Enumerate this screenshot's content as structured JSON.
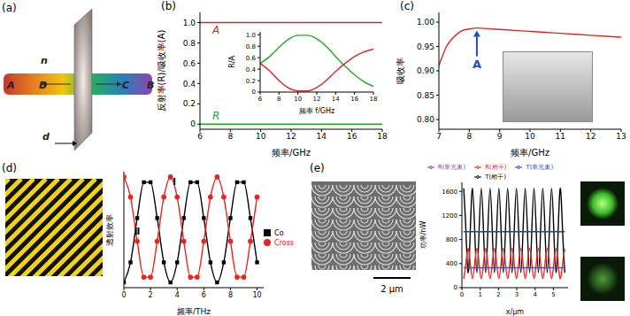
{
  "chart_data": [
    {
      "type": "line",
      "title": "(b)",
      "x_label": "频率/GHz",
      "y_label": "反射率(R)/吸收率(A)",
      "x": [
        6,
        18
      ],
      "series": [
        {
          "name": "A",
          "color": "#d62728",
          "values": [
            1,
            1
          ],
          "marker": "none"
        },
        {
          "name": "R",
          "color": "#2ca02c",
          "values": [
            0,
            0
          ],
          "marker": "none"
        }
      ],
      "xlim": [
        6,
        18
      ],
      "ylim": [
        -0.05,
        1.1
      ],
      "xticks": [
        6,
        8,
        10,
        12,
        14,
        16,
        18
      ],
      "yticks": [
        0,
        0.2,
        0.4,
        0.6,
        0.8,
        {
          "value": 1,
          "label": "1.0"
        }
      ]
    },
    {
      "type": "line",
      "x_label": "频率 f/GHz",
      "y_label": "R/A",
      "x": [
        6,
        7,
        8,
        9,
        10,
        11,
        12,
        13,
        14,
        15,
        16,
        17,
        18
      ],
      "series": [
        {
          "color": "#2ca02c",
          "values": [
            0.5,
            0.62,
            0.78,
            0.92,
            0.99,
            0.99,
            0.93,
            0.8,
            0.62,
            0.45,
            0.3,
            0.18,
            0.1
          ],
          "marker": "none"
        },
        {
          "color": "#d62728",
          "values": [
            0.5,
            0.37,
            0.2,
            0.07,
            0.02,
            0.02,
            0.08,
            0.2,
            0.36,
            0.5,
            0.62,
            0.7,
            0.75
          ],
          "marker": "none"
        }
      ],
      "xlim": [
        6,
        18
      ],
      "ylim": [
        0,
        1.05
      ],
      "xticks": [
        6,
        8,
        10,
        12,
        14,
        16,
        18
      ],
      "yticks": [
        0,
        0.2,
        0.4,
        0.6,
        0.8,
        {
          "value": 1,
          "label": "1.0"
        }
      ]
    },
    {
      "type": "line",
      "title": "(c)",
      "x_label": "频率/GHz",
      "y_label": "吸收率",
      "x": [
        7,
        7.25,
        7.5,
        7.75,
        8,
        8.25,
        8.5,
        8.75,
        9,
        9.5,
        10,
        10.5,
        11,
        11.5,
        12,
        12.5,
        13
      ],
      "series": [
        {
          "color": "#d62728",
          "values": [
            0.91,
            0.95,
            0.97,
            0.982,
            0.986,
            0.988,
            0.987,
            0.986,
            0.985,
            0.983,
            0.981,
            0.979,
            0.977,
            0.975,
            0.973,
            0.971,
            0.969
          ],
          "marker": "none"
        }
      ],
      "annotations": [
        {
          "text": "A",
          "x": 8.25,
          "y": 0.988
        }
      ],
      "xlim": [
        7,
        13
      ],
      "ylim": [
        0.78,
        1.02
      ],
      "xticks": [
        7,
        8,
        9,
        10,
        11,
        12,
        13
      ],
      "yticks": [
        {
          "value": 0.8,
          "label": "0.80"
        },
        0.85,
        {
          "value": 0.9,
          "label": "0.90"
        },
        0.95,
        {
          "value": 1,
          "label": "1.00"
        }
      ]
    },
    {
      "type": "line",
      "title": "(d)",
      "x_label": "频率/THz",
      "y_label": "透射效率",
      "x": [
        0,
        0.5,
        1,
        1.5,
        2,
        2.5,
        3,
        3.5,
        4,
        4.5,
        5,
        5.5,
        6,
        6.5,
        7,
        7.5,
        8,
        8.5,
        9,
        9.5,
        10
      ],
      "series": [
        {
          "name": "Co",
          "color": "#000000",
          "marker": "square",
          "values": [
            0,
            0.19,
            0.61,
            0.95,
            0.95,
            0.61,
            0.19,
            0,
            0.19,
            0.61,
            0.95,
            0.95,
            0.61,
            0.19,
            0,
            0.19,
            0.61,
            0.95,
            0.95,
            0.61,
            0.19
          ]
        },
        {
          "name": "Cross",
          "color": "#e8251f",
          "marker": "circle",
          "values": [
            1,
            0.81,
            0.39,
            0.05,
            0.05,
            0.39,
            0.81,
            1,
            0.81,
            0.39,
            0.05,
            0.05,
            0.39,
            0.81,
            1,
            0.81,
            0.39,
            0.05,
            0.05,
            0.39,
            0.81
          ]
        }
      ],
      "annotations": [
        {
          "text": "Ⅰ",
          "x": 3.8,
          "y": 0.92
        },
        {
          "text": "Ⅱ",
          "x": 1.0,
          "y": 0.45
        }
      ],
      "legend": "right",
      "tick_labels": "x",
      "xlim": [
        0,
        10.5
      ],
      "ylim": [
        -0.05,
        1.05
      ],
      "xticks": [
        0,
        2,
        4,
        6,
        8,
        10
      ]
    },
    {
      "type": "line",
      "title": "(e)",
      "x_label": "x/μm",
      "y_label": "功率/nW",
      "x": [
        0.1,
        0.22,
        0.34,
        0.46,
        0.58,
        0.7,
        0.82,
        0.94,
        1.06,
        1.18,
        1.3,
        1.42,
        1.54,
        1.66,
        1.78,
        1.9,
        2.02,
        2.14,
        2.26,
        2.38,
        2.5,
        2.62,
        2.74,
        2.86,
        2.98,
        3.1,
        3.22,
        3.34,
        3.46,
        3.58,
        3.7,
        3.82,
        3.94,
        4.06,
        4.18,
        4.3,
        4.42,
        4.54,
        4.66,
        4.78,
        4.9,
        5.02,
        5.14,
        5.26,
        5.38,
        5.5,
        5.62
      ],
      "series": [
        {
          "name": "T(相干)",
          "color": "#000000",
          "marker": "none",
          "values": [
            1650,
            950,
            250,
            950,
            1650,
            950,
            250,
            950,
            1650,
            950,
            250,
            950,
            1650,
            950,
            250,
            950,
            1650,
            950,
            250,
            950,
            1650,
            950,
            250,
            950,
            1650,
            950,
            250,
            950,
            1650,
            950,
            250,
            950,
            1650,
            950,
            250,
            950,
            1650,
            950,
            250,
            950,
            1650,
            950,
            250,
            950,
            1650,
            950,
            250
          ]
        },
        {
          "name": "R(相干)",
          "color": "#e8251f",
          "marker": "none",
          "values": [
            150,
            400,
            650,
            400,
            150,
            400,
            650,
            400,
            150,
            400,
            650,
            400,
            150,
            400,
            650,
            400,
            150,
            400,
            650,
            400,
            150,
            400,
            650,
            400,
            150,
            400,
            650,
            400,
            150,
            400,
            650,
            400,
            150,
            400,
            650,
            400,
            150,
            400,
            650,
            400,
            150,
            400,
            650,
            400,
            150,
            400,
            650
          ]
        },
        {
          "name": "T(单光束)",
          "color": "#1f3fbf",
          "marker": "none",
          "values": [
            930,
            930,
            930,
            930,
            930,
            930,
            930,
            930,
            930,
            930,
            930,
            930,
            930,
            930,
            930,
            930,
            930,
            930,
            930,
            930,
            930,
            930,
            930,
            930,
            930,
            930,
            930,
            930,
            930,
            930,
            930,
            930,
            930,
            930,
            930,
            930,
            930,
            930,
            930,
            930,
            930,
            930,
            930,
            930,
            930,
            930,
            930
          ]
        },
        {
          "name": "R(单光束)",
          "color": "#7b3fa0",
          "marker": "none",
          "values": [
            330,
            330,
            330,
            330,
            330,
            330,
            330,
            330,
            330,
            330,
            330,
            330,
            330,
            330,
            330,
            330,
            330,
            330,
            330,
            330,
            330,
            330,
            330,
            330,
            330,
            330,
            330,
            330,
            330,
            330,
            330,
            330,
            330,
            330,
            330,
            330,
            330,
            330,
            330,
            330,
            330,
            330,
            330,
            330,
            330,
            330,
            330
          ]
        }
      ],
      "legend": "top",
      "xlim": [
        0,
        5.8
      ],
      "ylim": [
        0,
        1750
      ],
      "xticks": [
        0,
        1,
        2,
        3,
        4,
        5
      ],
      "yticks": [
        0,
        400,
        800,
        1200,
        1600
      ]
    }
  ],
  "diagram_a": {
    "title": "(a)",
    "labels": [
      "n",
      "A",
      "D",
      "C",
      "B",
      "d"
    ]
  },
  "image_e": {
    "scale_bar": "2 μm"
  }
}
